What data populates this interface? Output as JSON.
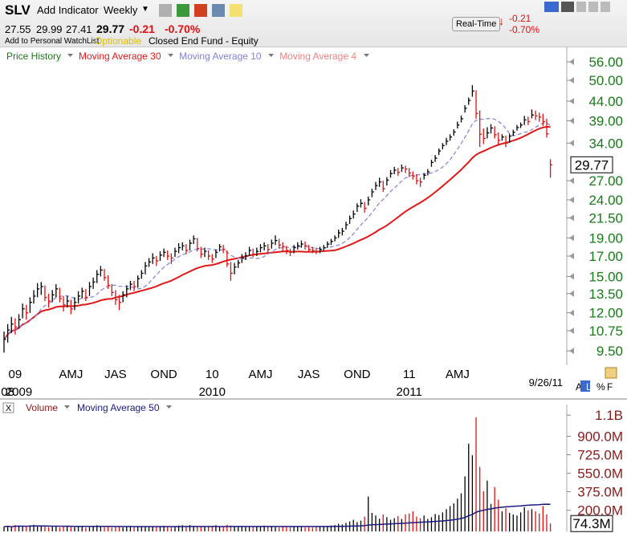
{
  "header": {
    "symbol": "SLV",
    "add_indicator": "Add Indicator",
    "period": "Weekly",
    "open": "27.55",
    "high": "29.99",
    "low": "27.41",
    "close": "29.77",
    "change": "-0.21",
    "change_pct": "-0.70%",
    "watchlist": "Add to Personal WatchList",
    "optionable": "Optionable",
    "fund_type": "Closed End Fund - Equity",
    "realtime": "Real-Time",
    "rt_change": "-0.21",
    "rt_change_pct": "-0.70%",
    "toggles": [
      "A",
      "L",
      "%",
      "F"
    ],
    "close_button": "X"
  },
  "chart_data": [
    {
      "type": "ohlc",
      "series_name": "Price History",
      "series_color": "#1a7a1a",
      "log_scale": true,
      "up_color": "#000000",
      "down_color": "#e01010",
      "ylim": [
        8.7,
        60
      ],
      "yticks": [
        {
          "value": 56,
          "label": "56.00"
        },
        {
          "value": 50,
          "label": "50.00"
        },
        {
          "value": 44,
          "label": "44.00"
        },
        {
          "value": 39,
          "label": "39.00"
        },
        {
          "value": 34,
          "label": "34.00"
        },
        {
          "value": 27,
          "label": "27.00"
        },
        {
          "value": 24,
          "label": "24.00"
        },
        {
          "value": 21.5,
          "label": "21.50"
        },
        {
          "value": 19,
          "label": "19.00"
        },
        {
          "value": 17,
          "label": "17.00"
        },
        {
          "value": 15,
          "label": "15.00"
        },
        {
          "value": 13.5,
          "label": "13.50"
        },
        {
          "value": 12,
          "label": "12.00"
        },
        {
          "value": 10.75,
          "label": "10.75"
        },
        {
          "value": 9.5,
          "label": "9.50"
        }
      ],
      "last": {
        "value": 29.77,
        "label": "29.77"
      },
      "date": "9/26/11",
      "xticks": [
        {
          "value": 3,
          "label": "09"
        },
        {
          "value": 18,
          "label": "AMJ"
        },
        {
          "value": 30,
          "label": "JAS"
        },
        {
          "value": 43,
          "label": "OND"
        },
        {
          "value": 56,
          "label": "10"
        },
        {
          "value": 69,
          "label": "AMJ"
        },
        {
          "value": 82,
          "label": "JAS"
        },
        {
          "value": 95,
          "label": "OND"
        },
        {
          "value": 109,
          "label": "11"
        },
        {
          "value": 122,
          "label": "AMJ"
        }
      ],
      "xticks_year": [
        {
          "value": 1,
          "label": "08"
        },
        {
          "value": 4,
          "label": "2009"
        },
        {
          "value": 56,
          "label": "2010"
        },
        {
          "value": 109,
          "label": "2011"
        }
      ],
      "overlays": [
        {
          "name": "Moving Average 30",
          "period": 30,
          "color": "#e01818",
          "dashed": false,
          "visible": true
        },
        {
          "name": "Moving Average 10",
          "period": 10,
          "color": "#8080dd",
          "dashed": true,
          "visible": true
        },
        {
          "name": "Moving Average 4",
          "period": 4,
          "color": "#f08080",
          "dashed": false,
          "visible": false
        }
      ],
      "close": [
        10.2,
        10.8,
        11.2,
        11.0,
        11.5,
        12.3,
        12.0,
        12.8,
        13.3,
        13.9,
        14.1,
        13.2,
        12.9,
        13.4,
        13.9,
        13.1,
        12.6,
        12.9,
        12.3,
        12.8,
        13.3,
        13.7,
        13.2,
        14.1,
        14.5,
        15.2,
        15.6,
        14.9,
        14.2,
        13.6,
        13.0,
        12.8,
        13.4,
        13.9,
        14.3,
        14.1,
        14.8,
        15.3,
        16.0,
        16.4,
        16.8,
        16.5,
        17.1,
        17.4,
        17.0,
        16.8,
        17.5,
        17.9,
        18.1,
        17.6,
        18.4,
        18.9,
        17.8,
        17.2,
        17.5,
        17.0,
        16.7,
        17.4,
        18.0,
        17.7,
        16.2,
        15.3,
        15.9,
        16.3,
        16.8,
        17.0,
        17.6,
        17.2,
        17.5,
        17.9,
        18.1,
        17.7,
        18.4,
        18.7,
        18.2,
        18.0,
        17.6,
        17.4,
        17.9,
        18.1,
        18.3,
        18.1,
        17.7,
        17.6,
        17.5,
        17.7,
        17.9,
        18.3,
        18.6,
        19.0,
        19.6,
        19.8,
        20.6,
        21.4,
        22.0,
        23.1,
        23.5,
        22.8,
        24.0,
        25.2,
        26.2,
        26.8,
        25.7,
        27.1,
        28.2,
        28.8,
        28.4,
        29.2,
        29.0,
        28.3,
        27.8,
        27.0,
        26.8,
        27.9,
        28.5,
        30.2,
        31.0,
        32.4,
        33.5,
        34.4,
        35.3,
        36.4,
        38.0,
        39.5,
        42.1,
        44.2,
        46.8,
        40.8,
        35.9,
        35.0,
        36.2,
        37.3,
        35.8,
        34.6,
        35.3,
        34.0,
        35.5,
        36.3,
        37.4,
        38.0,
        39.2,
        38.8,
        40.4,
        40.2,
        39.9,
        38.8,
        36.0,
        29.77
      ],
      "high": [
        10.7,
        11.2,
        11.7,
        11.6,
        11.9,
        12.7,
        12.6,
        13.2,
        13.8,
        14.4,
        14.5,
        14.2,
        13.5,
        13.8,
        14.3,
        14.0,
        13.3,
        13.3,
        13.0,
        13.2,
        13.7,
        14.0,
        13.9,
        14.5,
        14.9,
        15.6,
        16.0,
        15.7,
        15.1,
        14.3,
        13.8,
        13.4,
        13.7,
        14.2,
        14.6,
        14.6,
        15.1,
        15.6,
        16.4,
        16.8,
        17.3,
        17.0,
        17.5,
        17.8,
        17.6,
        17.3,
        17.9,
        18.4,
        18.5,
        18.3,
        18.8,
        19.3,
        19.0,
        18.0,
        17.9,
        17.6,
        17.2,
        17.7,
        18.3,
        18.2,
        17.6,
        16.4,
        16.3,
        16.6,
        17.2,
        17.4,
        18.0,
        17.8,
        17.9,
        18.3,
        18.5,
        18.3,
        18.8,
        19.3,
        18.9,
        18.5,
        18.1,
        17.8,
        18.2,
        18.5,
        18.7,
        18.6,
        18.2,
        18.0,
        17.9,
        18.0,
        18.2,
        18.6,
        18.9,
        19.3,
        20.0,
        20.2,
        21.0,
        21.8,
        22.5,
        23.5,
        24.1,
        23.7,
        24.5,
        25.7,
        26.8,
        27.5,
        27.0,
        27.6,
        28.8,
        29.4,
        29.2,
        29.8,
        29.6,
        29.2,
        28.6,
        28.1,
        27.5,
        28.3,
        29.0,
        30.7,
        31.6,
        32.9,
        34.0,
        35.1,
        35.9,
        37.0,
        38.8,
        40.3,
        42.9,
        45.0,
        48.5,
        47.0,
        41.5,
        37.2,
        37.5,
        38.2,
        37.7,
        36.3,
        35.9,
        35.6,
        36.0,
        36.9,
        38.0,
        38.6,
        40.2,
        40.0,
        41.8,
        41.5,
        41.0,
        40.7,
        39.5,
        30.8
      ],
      "low": [
        9.4,
        10.0,
        10.6,
        10.5,
        10.9,
        11.6,
        11.5,
        12.0,
        12.7,
        13.2,
        13.4,
        12.9,
        12.4,
        12.8,
        13.2,
        12.8,
        12.1,
        12.4,
        11.9,
        12.2,
        12.7,
        13.1,
        12.9,
        13.3,
        13.9,
        14.4,
        15.0,
        14.6,
        13.9,
        13.3,
        12.6,
        12.2,
        12.8,
        13.2,
        13.8,
        13.7,
        14.0,
        14.8,
        15.2,
        15.9,
        16.2,
        16.0,
        16.5,
        16.9,
        16.6,
        16.2,
        16.9,
        17.3,
        17.6,
        17.2,
        17.6,
        18.3,
        17.5,
        16.8,
        16.9,
        16.6,
        16.3,
        16.8,
        17.5,
        17.3,
        15.9,
        14.6,
        15.2,
        15.8,
        16.3,
        16.6,
        17.0,
        16.9,
        17.0,
        17.4,
        17.6,
        17.3,
        17.8,
        18.2,
        17.8,
        17.5,
        17.2,
        17.0,
        17.3,
        17.7,
        17.9,
        17.7,
        17.4,
        17.3,
        17.2,
        17.3,
        17.6,
        17.9,
        18.2,
        18.6,
        19.0,
        19.3,
        20.0,
        20.7,
        21.4,
        22.3,
        22.9,
        22.2,
        23.2,
        24.4,
        25.5,
        26.0,
        25.2,
        26.2,
        27.5,
        28.1,
        27.8,
        28.5,
        28.3,
        27.6,
        27.2,
        26.4,
        26.0,
        27.2,
        27.9,
        29.4,
        30.3,
        31.6,
        32.7,
        33.6,
        34.5,
        35.6,
        37.2,
        38.6,
        41.0,
        43.0,
        45.2,
        39.5,
        33.2,
        33.8,
        35.0,
        36.1,
        35.0,
        33.5,
        34.5,
        33.2,
        34.1,
        35.5,
        36.7,
        37.3,
        38.0,
        38.0,
        39.6,
        39.2,
        38.8,
        37.8,
        35.2,
        27.5
      ]
    },
    {
      "type": "bar",
      "title": "Volume",
      "title_color": "#8b1a1a",
      "ylim": [
        0,
        1200
      ],
      "yticks": [
        {
          "value": 1100,
          "label": "1.1B"
        },
        {
          "value": 900,
          "label": "900.0M"
        },
        {
          "value": 725,
          "label": "725.0M"
        },
        {
          "value": 550,
          "label": "550.0M"
        },
        {
          "value": 375,
          "label": "375.0M"
        },
        {
          "value": 200,
          "label": "200.0M"
        }
      ],
      "last": {
        "value": 74.3,
        "label": "74.3M"
      },
      "overlays": [
        {
          "name": "Moving Average 50",
          "period": 50,
          "color": "#1a1a80"
        }
      ],
      "values": [
        45,
        52,
        38,
        60,
        55,
        48,
        42,
        58,
        62,
        50,
        47,
        55,
        40,
        44,
        50,
        38,
        46,
        52,
        41,
        39,
        43,
        48,
        36,
        40,
        52,
        58,
        45,
        39,
        42,
        37,
        40,
        44,
        38,
        41,
        47,
        39,
        42,
        50,
        46,
        44,
        48,
        41,
        45,
        52,
        43,
        40,
        46,
        55,
        58,
        47,
        60,
        53,
        49,
        44,
        41,
        47,
        52,
        58,
        45,
        40,
        62,
        55,
        48,
        43,
        46,
        40,
        44,
        49,
        51,
        45,
        55,
        47,
        42,
        40,
        38,
        43,
        41,
        39,
        44,
        46,
        42,
        38,
        40,
        37,
        41,
        44,
        47,
        52,
        56,
        60,
        72,
        65,
        80,
        95,
        110,
        88,
        102,
        140,
        330,
        175,
        150,
        120,
        160,
        135,
        110,
        125,
        145,
        118,
        160,
        170,
        190,
        140,
        125,
        150,
        118,
        135,
        165,
        155,
        180,
        210,
        240,
        265,
        310,
        360,
        520,
        830,
        720,
        1080,
        610,
        380,
        480,
        260,
        420,
        300,
        190,
        220,
        175,
        160,
        150,
        180,
        230,
        200,
        210,
        190,
        170,
        240,
        160,
        74.3
      ]
    }
  ]
}
